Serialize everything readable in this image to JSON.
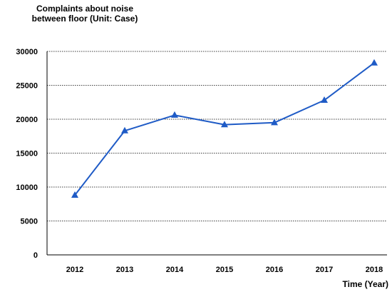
{
  "chart_data": {
    "type": "line",
    "title_lines": [
      "Complaints about noise",
      "between floor (Unit: Case)"
    ],
    "xlabel": "Time (Year)",
    "ylabel": "",
    "categories": [
      "2012",
      "2013",
      "2014",
      "2015",
      "2016",
      "2017",
      "2018"
    ],
    "series": [
      {
        "values": [
          8800,
          18300,
          20600,
          19200,
          19500,
          22800,
          28300
        ],
        "color": "#1f5bc6",
        "marker": "triangle"
      }
    ],
    "yticks": [
      0,
      5000,
      10000,
      15000,
      20000,
      25000,
      30000
    ],
    "ylim": [
      0,
      30000
    ],
    "grid": "horizontal-dotted",
    "legend": "none"
  }
}
